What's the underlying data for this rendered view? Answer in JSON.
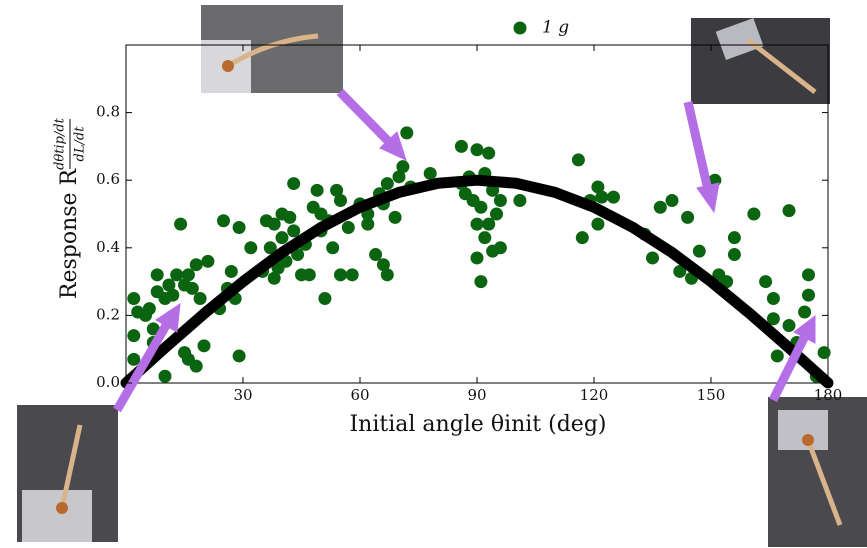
{
  "chart_data": {
    "type": "scatter",
    "x_label": "Initial angle θinit (deg)",
    "y_label": "Response R",
    "y_label_num": "dθtip/dt",
    "y_label_den": "dL/dt",
    "xlim": [
      0,
      180
    ],
    "ylim": [
      0,
      1.0
    ],
    "xticks": [
      30,
      60,
      90,
      120,
      150,
      180
    ],
    "yticks": [
      {
        "value": 0,
        "label": "0.0"
      },
      0.2,
      0.4,
      0.6,
      0.8
    ],
    "legend": "upper center",
    "series": [
      {
        "name": "1 g",
        "color": "#0b6410",
        "x": [
          2,
          2,
          2,
          3,
          5,
          6,
          7,
          7,
          8,
          8,
          10,
          10,
          11,
          12,
          13,
          14,
          15,
          15,
          16,
          16,
          17,
          18,
          18,
          19,
          20,
          21,
          24,
          25,
          26,
          27,
          28,
          29,
          29,
          32,
          35,
          36,
          37,
          38,
          38,
          39,
          40,
          40,
          41,
          42,
          43,
          43,
          44,
          45,
          46,
          47,
          48,
          49,
          50,
          50,
          51,
          52,
          53,
          54,
          55,
          55,
          57,
          58,
          60,
          62,
          62,
          64,
          65,
          66,
          66,
          67,
          67,
          69,
          70,
          71,
          72,
          73,
          78,
          86,
          86,
          87,
          88,
          89,
          90,
          90,
          90,
          91,
          91,
          92,
          92,
          93,
          93,
          94,
          94,
          95,
          96,
          96,
          101,
          116,
          117,
          119,
          121,
          121,
          122,
          125,
          133,
          135,
          137,
          140,
          142,
          144,
          145,
          147,
          151,
          152,
          154,
          156,
          156,
          161,
          164,
          166,
          166,
          167,
          170,
          170,
          172,
          174,
          175,
          175,
          177,
          179
        ],
        "values": [
          0.25,
          0.14,
          0.07,
          0.21,
          0.2,
          0.22,
          0.16,
          0.12,
          0.27,
          0.32,
          0.25,
          0.02,
          0.29,
          0.26,
          0.32,
          0.47,
          0.29,
          0.09,
          0.07,
          0.32,
          0.28,
          0.35,
          0.05,
          0.25,
          0.11,
          0.36,
          0.22,
          0.48,
          0.28,
          0.33,
          0.25,
          0.46,
          0.08,
          0.4,
          0.33,
          0.48,
          0.4,
          0.47,
          0.31,
          0.34,
          0.5,
          0.43,
          0.36,
          0.49,
          0.59,
          0.45,
          0.38,
          0.32,
          0.41,
          0.32,
          0.52,
          0.57,
          0.5,
          0.45,
          0.25,
          0.48,
          0.4,
          0.57,
          0.54,
          0.32,
          0.46,
          0.32,
          0.53,
          0.47,
          0.5,
          0.38,
          0.56,
          0.53,
          0.35,
          0.59,
          0.32,
          0.49,
          0.61,
          0.64,
          0.74,
          0.58,
          0.62,
          0.7,
          0.59,
          0.56,
          0.61,
          0.54,
          0.69,
          0.47,
          0.37,
          0.52,
          0.3,
          0.62,
          0.43,
          0.68,
          0.47,
          0.39,
          0.57,
          0.5,
          0.4,
          0.54,
          0.54,
          0.66,
          0.43,
          0.54,
          0.58,
          0.47,
          0.55,
          0.55,
          0.44,
          0.37,
          0.52,
          0.54,
          0.33,
          0.49,
          0.31,
          0.39,
          0.6,
          0.32,
          0.3,
          0.43,
          0.38,
          0.5,
          0.3,
          0.25,
          0.19,
          0.08,
          0.51,
          0.17,
          0.12,
          0.21,
          0.32,
          0.26,
          0.02,
          0.09
        ]
      }
    ],
    "fit": {
      "color": "#000000",
      "x": [
        0,
        10,
        20,
        30,
        40,
        50,
        60,
        70,
        80,
        90,
        100,
        110,
        120,
        130,
        140,
        150,
        160,
        170,
        180
      ],
      "values": [
        0,
        0.104,
        0.205,
        0.3,
        0.386,
        0.46,
        0.52,
        0.564,
        0.591,
        0.6,
        0.591,
        0.564,
        0.52,
        0.46,
        0.386,
        0.3,
        0.205,
        0.104,
        0
      ]
    }
  }
}
